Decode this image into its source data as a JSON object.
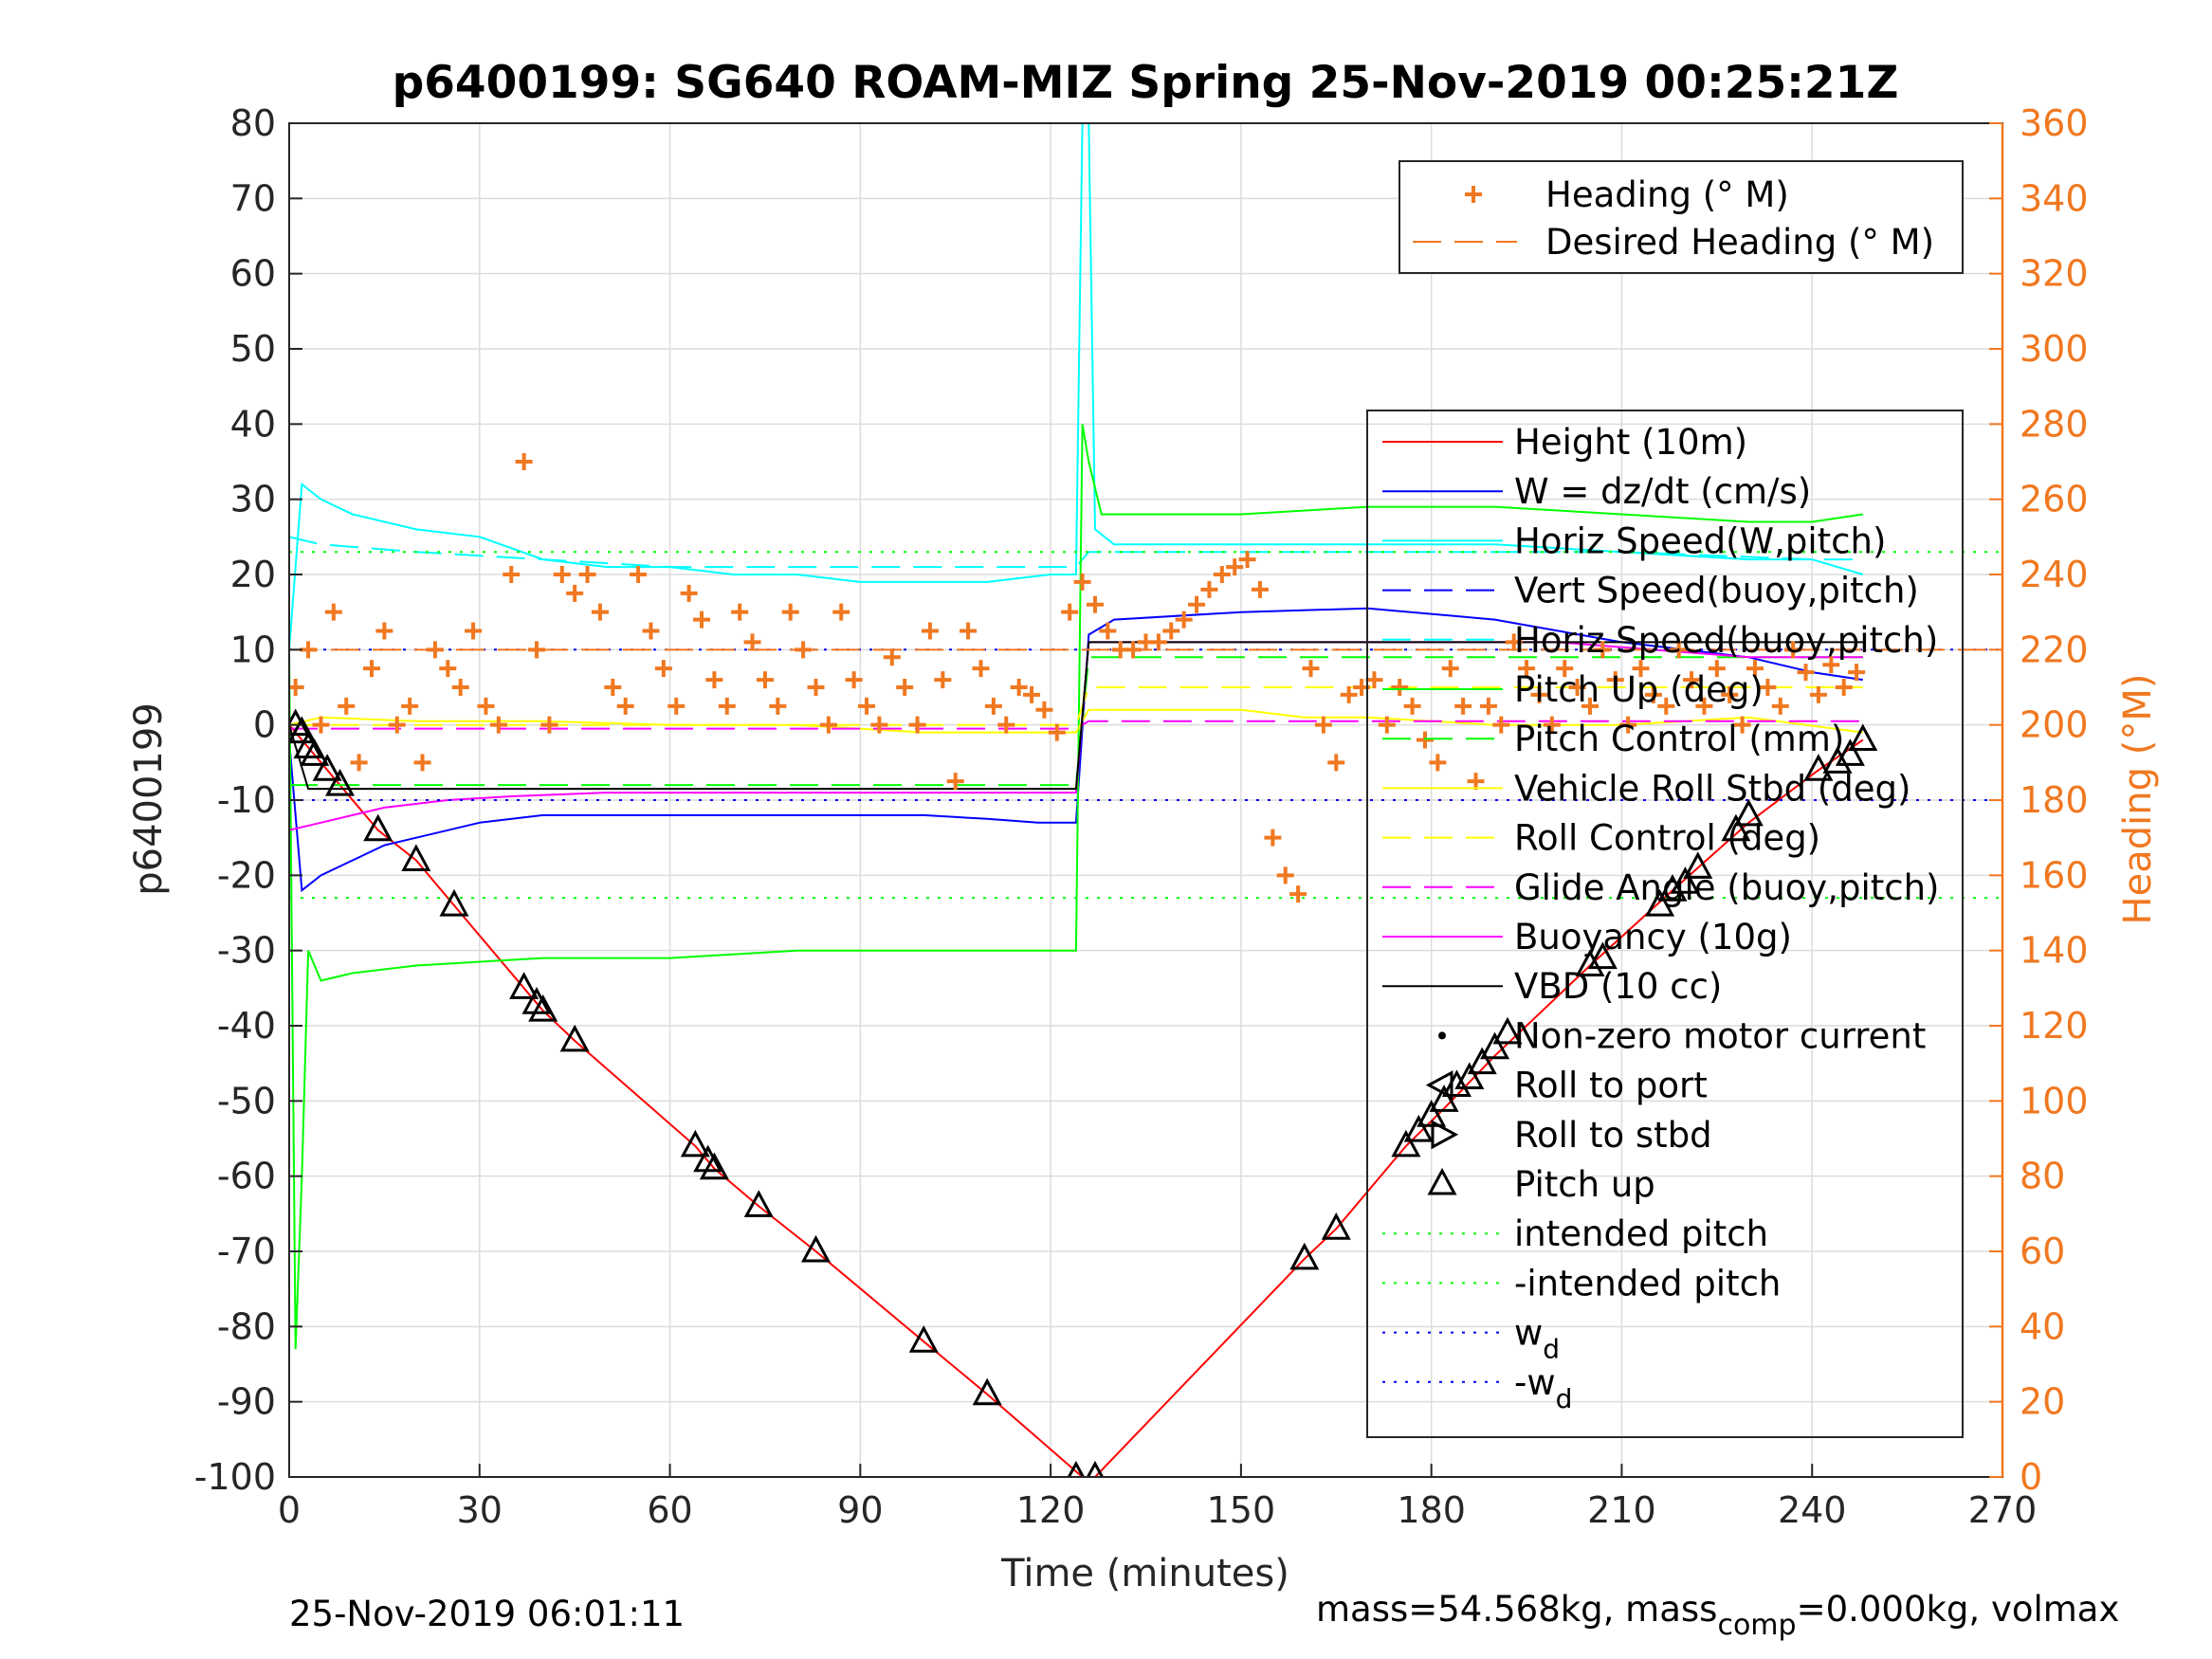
{
  "chart_data": {
    "type": "line",
    "title": "p6400199: SG640 ROAM-MIZ Spring 25-Nov-2019 00:25:21Z",
    "xlabel": "Time (minutes)",
    "ylabel": "p6400199",
    "ylabel_right": "Heading (°M)",
    "xlim": [
      0,
      270
    ],
    "ylim": [
      -100,
      80
    ],
    "ylim_right": [
      0,
      360
    ],
    "x_ticks": [
      "0",
      "30",
      "60",
      "90",
      "120",
      "150",
      "180",
      "210",
      "240",
      "270"
    ],
    "y_ticks": [
      "80",
      "70",
      "60",
      "50",
      "40",
      "30",
      "20",
      "10",
      "0",
      "-10",
      "-20",
      "-30",
      "-40",
      "-50",
      "-60",
      "-70",
      "-80",
      "-90",
      "-100"
    ],
    "y_ticks_right": [
      "360",
      "340",
      "320",
      "300",
      "280",
      "260",
      "240",
      "220",
      "200",
      "180",
      "160",
      "140",
      "120",
      "100",
      "80",
      "60",
      "40",
      "20",
      "0"
    ],
    "grid": true,
    "legend_top": [
      {
        "label": "Heading (° M)",
        "color": "#f07820",
        "style": "plus"
      },
      {
        "label": "Desired Heading (° M)",
        "color": "#f07820",
        "style": "dashed"
      }
    ],
    "legend_main": [
      {
        "label": "Height (10m)",
        "color": "#ff0000",
        "style": "line"
      },
      {
        "label": "W = dz/dt (cm/s)",
        "color": "#0000ff",
        "style": "line"
      },
      {
        "label": "Horiz Speed(W,pitch)",
        "color": "#00ffff",
        "style": "line"
      },
      {
        "label": "Vert Speed(buoy,pitch)",
        "color": "#0000ff",
        "style": "dashed"
      },
      {
        "label": "Horiz Speed(buoy,pitch)",
        "color": "#00ffff",
        "style": "dashed"
      },
      {
        "label": "Pitch Up (deg)",
        "color": "#00ff00",
        "style": "line"
      },
      {
        "label": "Pitch Control (mm)",
        "color": "#00ff00",
        "style": "dashed"
      },
      {
        "label": "Vehicle Roll Stbd (deg)",
        "color": "#ffff00",
        "style": "line"
      },
      {
        "label": "Roll Control (deg)",
        "color": "#ffff00",
        "style": "dashed"
      },
      {
        "label": "Glide Angle (buoy,pitch)",
        "color": "#ff00ff",
        "style": "dashed"
      },
      {
        "label": "Buoyancy (10g)",
        "color": "#ff00ff",
        "style": "line"
      },
      {
        "label": "VBD (10 cc)",
        "color": "#000000",
        "style": "line"
      },
      {
        "label": "Non-zero motor current",
        "color": "#000000",
        "style": "dot"
      },
      {
        "label": "Roll to port",
        "color": "#000000",
        "style": "tri-left"
      },
      {
        "label": "Roll to stbd",
        "color": "#000000",
        "style": "tri-right"
      },
      {
        "label": "Pitch up",
        "color": "#000000",
        "style": "tri-up"
      },
      {
        "label": "intended pitch",
        "color": "#00ff00",
        "style": "dotted"
      },
      {
        "label": "-intended pitch",
        "color": "#00ff00",
        "style": "dotted"
      },
      {
        "label": "w",
        "sub": "d",
        "color": "#0000ff",
        "style": "dotted"
      },
      {
        "label": "-w",
        "sub": "d",
        "color": "#0000ff",
        "style": "dotted"
      }
    ],
    "series": [
      {
        "name": "Height (10m)",
        "color": "#ff0000",
        "x": [
          0,
          2,
          5,
          8,
          14,
          20,
          26,
          37,
          40,
          45,
          64,
          67,
          74,
          83,
          100,
          110,
          125,
          127,
          160,
          165,
          176,
          182,
          190,
          205,
          218,
          230,
          241,
          248
        ],
        "y": [
          0,
          -2,
          -5,
          -8,
          -14,
          -18,
          -24,
          -35,
          -38,
          -42,
          -56,
          -59,
          -64,
          -70,
          -82,
          -89,
          -100,
          -100,
          -71,
          -67,
          -56,
          -51,
          -44,
          -32,
          -22,
          -13,
          -6,
          -2
        ]
      },
      {
        "name": "W = dz/dt (cm/s)",
        "color": "#0000ff",
        "x": [
          0,
          2,
          5,
          10,
          15,
          20,
          30,
          40,
          50,
          60,
          70,
          80,
          90,
          100,
          110,
          118,
          124,
          126,
          130,
          150,
          170,
          190,
          210,
          230,
          240,
          248
        ],
        "y": [
          -2,
          -22,
          -20,
          -18,
          -16,
          -15,
          -13,
          -12,
          -12,
          -12,
          -12,
          -12,
          -12,
          -12,
          -12.5,
          -13,
          -13,
          12,
          14,
          15,
          15.5,
          14,
          11,
          9,
          7,
          6
        ]
      },
      {
        "name": "Horiz Speed(W,pitch)",
        "color": "#00ffff",
        "x": [
          0,
          2,
          5,
          10,
          20,
          30,
          40,
          50,
          60,
          70,
          80,
          90,
          100,
          110,
          120,
          124,
          125,
          126,
          127,
          130,
          150,
          170,
          190,
          210,
          230,
          240,
          248
        ],
        "y": [
          10,
          32,
          30,
          28,
          26,
          25,
          22,
          21,
          21,
          20,
          20,
          19,
          19,
          19,
          20,
          20,
          80,
          80,
          26,
          24,
          24,
          24,
          24,
          23,
          22,
          22,
          20
        ]
      },
      {
        "name": "Horiz Speed(buoy,pitch)",
        "color": "#00ffff",
        "dashed": true,
        "x": [
          0,
          5,
          20,
          40,
          60,
          80,
          100,
          124,
          126,
          150,
          180,
          210,
          240,
          248
        ],
        "y": [
          25,
          24,
          23,
          22,
          21,
          21,
          21,
          21,
          23,
          23,
          23,
          23,
          22,
          22
        ]
      },
      {
        "name": "Pitch Up (deg)",
        "color": "#00ff00",
        "x": [
          0,
          1,
          2,
          3,
          5,
          10,
          20,
          40,
          60,
          80,
          100,
          124,
          125,
          126,
          128,
          150,
          170,
          190,
          210,
          230,
          240,
          248
        ],
        "y": [
          10,
          -83,
          -60,
          -30,
          -34,
          -33,
          -32,
          -31,
          -31,
          -30,
          -30,
          -30,
          40,
          35,
          28,
          28,
          29,
          29,
          28,
          27,
          27,
          28
        ]
      },
      {
        "name": "Pitch Control (mm)",
        "color": "#00ff00",
        "dashed": true,
        "x": [
          0,
          5,
          124,
          126,
          150,
          180,
          210,
          248
        ],
        "y": [
          -8,
          -8,
          -8,
          9,
          9,
          9,
          9,
          9
        ]
      },
      {
        "name": "Vehicle Roll Stbd (deg)",
        "color": "#ffff00",
        "x": [
          0,
          5,
          20,
          40,
          60,
          80,
          100,
          124,
          126,
          150,
          160,
          170,
          190,
          210,
          230,
          248
        ],
        "y": [
          0,
          1,
          0.5,
          0.5,
          0,
          0,
          -1,
          -1,
          2,
          2,
          1,
          1,
          0,
          0,
          1,
          -1
        ]
      },
      {
        "name": "Roll Control (deg)",
        "color": "#ffff00",
        "dashed": true,
        "x": [
          0,
          124,
          126,
          248
        ],
        "y": [
          0,
          0,
          5,
          5
        ]
      },
      {
        "name": "Glide Angle (buoy,pitch)",
        "color": "#ff00ff",
        "dashed": true,
        "x": [
          0,
          124,
          126,
          248
        ],
        "y": [
          -0.5,
          -0.5,
          0.5,
          0.5
        ]
      },
      {
        "name": "Buoyancy (10g)",
        "color": "#ff00ff",
        "x": [
          0,
          5,
          15,
          25,
          35,
          50,
          80,
          124,
          126,
          150,
          200,
          230,
          248
        ],
        "y": [
          -14,
          -13,
          -11,
          -10,
          -9.5,
          -9,
          -9,
          -9,
          11,
          11,
          11,
          9,
          9
        ]
      },
      {
        "name": "VBD (10 cc)",
        "color": "#000000",
        "x": [
          0,
          3,
          10,
          30,
          60,
          100,
          124,
          126,
          150,
          200,
          248
        ],
        "y": [
          0,
          -8.5,
          -8.5,
          -8.5,
          -8.5,
          -8.5,
          -8.5,
          11,
          11,
          11,
          11
        ]
      },
      {
        "name": "intended pitch",
        "color": "#00ff00",
        "dotted": true,
        "x": [
          0,
          270
        ],
        "y": [
          23,
          23
        ]
      },
      {
        "name": "-intended pitch",
        "color": "#00ff00",
        "dotted": true,
        "x": [
          0,
          270
        ],
        "y": [
          -23,
          -23
        ]
      },
      {
        "name": "w_d",
        "color": "#0000ff",
        "dotted": true,
        "x": [
          0,
          270
        ],
        "y": [
          10,
          10
        ]
      },
      {
        "name": "-w_d",
        "color": "#0000ff",
        "dotted": true,
        "x": [
          0,
          270
        ],
        "y": [
          -10,
          -10
        ]
      }
    ],
    "heading_series": {
      "name": "Heading (° M)",
      "color": "#f07820",
      "x": [
        1,
        3,
        5,
        7,
        9,
        11,
        13,
        15,
        17,
        19,
        21,
        23,
        25,
        27,
        29,
        31,
        33,
        35,
        37,
        39,
        41,
        43,
        45,
        47,
        49,
        51,
        53,
        55,
        57,
        59,
        61,
        63,
        65,
        67,
        69,
        71,
        73,
        75,
        77,
        79,
        81,
        83,
        85,
        87,
        89,
        91,
        93,
        95,
        97,
        99,
        101,
        103,
        105,
        107,
        109,
        111,
        113,
        115,
        117,
        119,
        121,
        123,
        125,
        127,
        129,
        131,
        133,
        135,
        137,
        139,
        141,
        143,
        145,
        147,
        149,
        151,
        153,
        155,
        157,
        159,
        161,
        163,
        165,
        167,
        169,
        171,
        173,
        175,
        177,
        179,
        181,
        183,
        185,
        187,
        189,
        191,
        193,
        195,
        197,
        199,
        201,
        203,
        205,
        207,
        209,
        211,
        213,
        215,
        217,
        219,
        221,
        223,
        225,
        227,
        229,
        231,
        233,
        235,
        237,
        239,
        241,
        243,
        245,
        247
      ],
      "y": [
        210,
        220,
        200,
        230,
        205,
        190,
        215,
        225,
        200,
        205,
        190,
        220,
        215,
        210,
        225,
        205,
        200,
        240,
        270,
        220,
        200,
        240,
        235,
        240,
        230,
        210,
        205,
        240,
        225,
        215,
        205,
        235,
        228,
        212,
        205,
        230,
        222,
        212,
        205,
        230,
        220,
        210,
        200,
        230,
        212,
        205,
        200,
        218,
        210,
        200,
        225,
        212,
        185,
        225,
        215,
        205,
        200,
        210,
        208,
        204,
        198,
        230,
        238,
        232,
        225,
        220,
        220,
        222,
        222,
        225,
        228,
        232,
        236,
        240,
        242,
        244,
        236,
        170,
        160,
        155,
        215,
        200,
        190,
        208,
        210,
        212,
        200,
        210,
        205,
        196,
        190,
        215,
        205,
        185,
        205,
        200,
        222,
        215,
        208,
        200,
        215,
        210,
        205,
        220,
        212,
        200,
        215,
        208,
        205,
        220,
        212,
        205,
        215,
        208,
        200,
        215,
        210,
        205,
        220,
        214,
        208,
        216,
        210,
        214
      ]
    },
    "desired_heading": {
      "name": "Desired Heading (° M)",
      "color": "#f07820",
      "x": [
        0,
        270
      ],
      "y": [
        220,
        220
      ]
    },
    "markers": {
      "pitch_up_x": [
        1,
        2,
        3,
        4,
        6,
        8,
        14,
        20,
        26,
        37,
        39,
        40,
        45,
        64,
        66,
        67,
        74,
        83,
        100,
        110,
        124,
        127,
        160,
        165,
        176,
        178,
        180,
        182,
        184,
        186,
        188,
        190,
        192,
        205,
        207,
        216,
        218,
        220,
        222,
        228,
        230,
        241,
        244,
        246,
        248
      ],
      "pitch_up_y": [
        0,
        -1,
        -3,
        -4,
        -6,
        -8,
        -14,
        -18,
        -24,
        -35,
        -37,
        -38,
        -42,
        -56,
        -58,
        -59,
        -64,
        -70,
        -82,
        -89,
        -100,
        -100,
        -71,
        -67,
        -56,
        -54,
        -52,
        -50,
        -48,
        -47,
        -45,
        -43,
        -41,
        -32,
        -31,
        -24,
        -22,
        -21,
        -19,
        -14,
        -12,
        -6,
        -5,
        -4,
        -2
      ]
    },
    "footer_left": "25-Nov-2019 06:01:11",
    "footer_right_pre": "mass=54.568kg, mass",
    "footer_right_sub": "comp",
    "footer_right_post": "=0.000kg, volmax"
  }
}
